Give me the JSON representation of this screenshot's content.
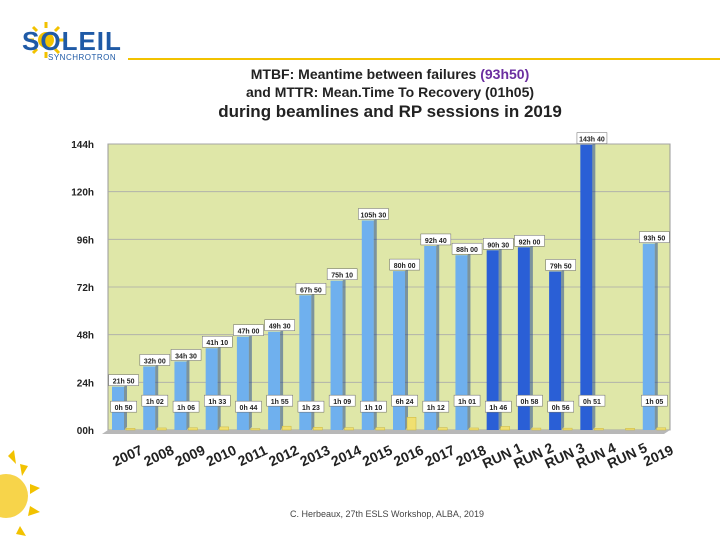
{
  "header": {
    "logo_text": "SOLEIL",
    "logo_sub": "SYNCHROTRON",
    "title_line1_a": "MTBF: Meantime between failures ",
    "title_line1_b": "(93h50)",
    "title_line2": "and MTTR: Mean.Time To Recovery (01h05)",
    "title_line3": "during beamlines and RP sessions in 2019"
  },
  "footer": {
    "text": "C. Herbeaux, 27th ESLS Workshop, ALBA, 2019"
  },
  "colors": {
    "mtbf_light": "#6fb0ee",
    "mtbf_dark": "#2a5fd6",
    "mttr": "#f0e070",
    "plot_bg": "#dfe7a8",
    "brand": "#1f5aa6",
    "accent": "#f2c200"
  },
  "chart_data": {
    "type": "bar",
    "categories": [
      "2007",
      "2008",
      "2009",
      "2010",
      "2011",
      "2012",
      "2013",
      "2014",
      "2015",
      "2016",
      "2017",
      "2018",
      "RUN 1",
      "RUN 2",
      "RUN 3",
      "RUN 4",
      "RUN 5",
      "2019"
    ],
    "y_ticks": [
      "00h",
      "24h",
      "48h",
      "72h",
      "96h",
      "120h",
      "144h"
    ],
    "ylim": [
      0,
      144
    ],
    "series": [
      {
        "name": "MTBF",
        "values": [
          21.83,
          32.0,
          34.5,
          41.17,
          47.0,
          49.5,
          67.83,
          75.17,
          105.5,
          80.0,
          92.67,
          88.0,
          90.5,
          92.0,
          79.83,
          143.67,
          0,
          93.83
        ],
        "labels": [
          "21h 50",
          "32h 00",
          "34h 30",
          "41h 10",
          "47h 00",
          "49h 30",
          "67h 50",
          "75h 10",
          "105h 30",
          "80h 00",
          "92h 40",
          "88h 00",
          "90h 30",
          "92h 00",
          "79h 50",
          "143h 40",
          "",
          "93h 50"
        ]
      },
      {
        "name": "MTTR",
        "values": [
          0.83,
          1.03,
          1.1,
          1.55,
          0.73,
          1.92,
          1.38,
          1.15,
          1.17,
          6.4,
          1.2,
          1.02,
          1.77,
          0.97,
          0.93,
          0.85,
          0.85,
          1.08
        ],
        "labels": [
          "0h 50",
          "1h 02",
          "1h 06",
          "1h 33",
          "0h 44",
          "1h 55",
          "1h 23",
          "1h 09",
          "1h 10",
          "6h 24",
          "1h 12",
          "1h 01",
          "1h 46",
          "0h 58",
          "0h 56",
          "0h 51",
          "",
          "1h 05"
        ]
      }
    ]
  }
}
